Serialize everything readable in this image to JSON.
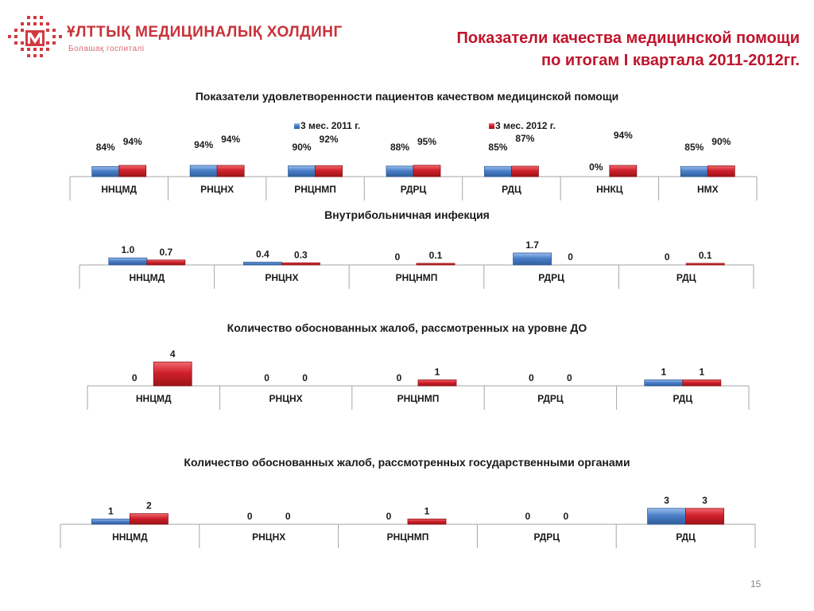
{
  "header": {
    "logo_text": "ҰЛТТЫҚ МЕДИЦИНАЛЫҚ ХОЛДИНГ",
    "logo_subtext": "Болашақ госпиталі",
    "title_line1": "Показатели качества медицинской помощи",
    "title_line2": "по итогам I квартала 2011-2012гг."
  },
  "page_number": "15",
  "colors": {
    "series_2011": "#4a7ec8",
    "series_2012": "#d0202c",
    "title": "#c0142c",
    "logo": "#c8323a"
  },
  "chart_data": [
    {
      "type": "bar",
      "title": "Показатели  удовлетворенности пациентов качеством медицинской помощи",
      "categories": [
        "ННЦМД",
        "РНЦНХ",
        "РНЦНМП",
        "РДРЦ",
        "РДЦ",
        "ННКЦ",
        "НМХ"
      ],
      "series": [
        {
          "name": "3 мес. 2011 г.",
          "values": [
            84,
            94,
            90,
            88,
            85,
            0,
            85
          ],
          "labels": [
            "84%",
            "94%",
            "90%",
            "88%",
            "85%",
            "0%",
            "85%"
          ]
        },
        {
          "name": "3 мес. 2012 г.",
          "values": [
            94,
            94,
            92,
            95,
            87,
            94,
            90
          ],
          "labels": [
            "94%",
            "94%",
            "92%",
            "95%",
            "87%",
            "94%",
            "90%"
          ]
        }
      ],
      "legend": "top",
      "grid": false
    },
    {
      "type": "bar",
      "title": "Внутрибольничная инфекция",
      "categories": [
        "ННЦМД",
        "РНЦНХ",
        "РНЦНМП",
        "РДРЦ",
        "РДЦ"
      ],
      "series": [
        {
          "values": [
            1.0,
            0.4,
            0,
            1.7,
            0
          ],
          "labels": [
            "1.0",
            "0.4",
            "0",
            "1.7",
            "0"
          ]
        },
        {
          "values": [
            0.7,
            0.3,
            0.1,
            0,
            0.1
          ],
          "labels": [
            "0.7",
            "0.3",
            "0.1",
            "0",
            "0.1"
          ]
        }
      ],
      "grid": false
    },
    {
      "type": "bar",
      "title": "Количество обоснованных жалоб, рассмотренных на уровне ДО",
      "categories": [
        "ННЦМД",
        "РНЦНХ",
        "РНЦНМП",
        "РДРЦ",
        "РДЦ"
      ],
      "series": [
        {
          "values": [
            0,
            0,
            0,
            0,
            1
          ],
          "labels": [
            "0",
            "0",
            "0",
            "0",
            "1"
          ]
        },
        {
          "values": [
            4,
            0,
            1,
            0,
            1
          ],
          "labels": [
            "4",
            "0",
            "1",
            "0",
            "1"
          ]
        }
      ],
      "grid": false
    },
    {
      "type": "bar",
      "title": "Количество обоснованных жалоб, рассмотренных государственными органами",
      "categories": [
        "ННЦМД",
        "РНЦНХ",
        "РНЦНМП",
        "РДРЦ",
        "РДЦ"
      ],
      "series": [
        {
          "values": [
            1,
            0,
            0,
            0,
            3
          ],
          "labels": [
            "1",
            "0",
            "0",
            "0",
            "3"
          ]
        },
        {
          "values": [
            2,
            0,
            1,
            0,
            3
          ],
          "labels": [
            "2",
            "0",
            "1",
            "0",
            "3"
          ]
        }
      ],
      "grid": false
    }
  ]
}
